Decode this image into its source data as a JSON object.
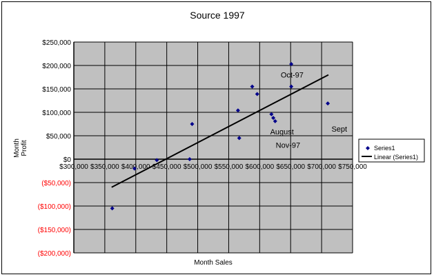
{
  "chart_data": {
    "type": "scatter",
    "title": "Source 1997",
    "xlabel": "Month Sales",
    "ylabel_lines": [
      "Month",
      "Profit"
    ],
    "xlim": [
      300000,
      750000
    ],
    "ylim": [
      -200000,
      250000
    ],
    "x_ticks": [
      {
        "value": 300000,
        "label": "$300,000"
      },
      {
        "value": 350000,
        "label": "$350,000"
      },
      {
        "value": 400000,
        "label": "$400,000"
      },
      {
        "value": 450000,
        "label": "$450,000"
      },
      {
        "value": 500000,
        "label": "$500,000"
      },
      {
        "value": 550000,
        "label": "$550,000"
      },
      {
        "value": 600000,
        "label": "$600,000"
      },
      {
        "value": 650000,
        "label": "$650,000"
      },
      {
        "value": 700000,
        "label": "$700,000"
      },
      {
        "value": 750000,
        "label": "$750,000"
      }
    ],
    "y_ticks": [
      {
        "value": 250000,
        "label": "$250,000"
      },
      {
        "value": 200000,
        "label": "$200,000"
      },
      {
        "value": 150000,
        "label": "$150,000"
      },
      {
        "value": 100000,
        "label": "$100,000"
      },
      {
        "value": 50000,
        "label": "$50,000"
      },
      {
        "value": 0,
        "label": "$0"
      },
      {
        "value": -50000,
        "label": "($50,000)"
      },
      {
        "value": -100000,
        "label": "($100,000)"
      },
      {
        "value": -150000,
        "label": "($150,000)"
      },
      {
        "value": -200000,
        "label": "($200,000)"
      }
    ],
    "series": [
      {
        "name": "Series1",
        "color": "#00008b",
        "points": [
          {
            "x": 362000,
            "y": -105000
          },
          {
            "x": 398000,
            "y": -20000
          },
          {
            "x": 434000,
            "y": -2000
          },
          {
            "x": 487000,
            "y": 0
          },
          {
            "x": 491000,
            "y": 75000
          },
          {
            "x": 565000,
            "y": 104000
          },
          {
            "x": 567000,
            "y": 45000
          },
          {
            "x": 588000,
            "y": 155000
          },
          {
            "x": 596000,
            "y": 139000
          },
          {
            "x": 619000,
            "y": 96000
          },
          {
            "x": 622000,
            "y": 88000
          },
          {
            "x": 625000,
            "y": 81000
          },
          {
            "x": 651000,
            "y": 203000
          },
          {
            "x": 651000,
            "y": 155000
          },
          {
            "x": 710000,
            "y": 119000
          }
        ]
      }
    ],
    "trendline": {
      "name": "Linear (Series1)",
      "color": "#000000",
      "x1": 361000,
      "y1": -60000,
      "x2": 711000,
      "y2": 180000
    },
    "annotations": [
      {
        "text": "Oct-97",
        "x": 634000,
        "y": 174000
      },
      {
        "text": "August",
        "x": 617000,
        "y": 53000
      },
      {
        "text": "Nov-97",
        "x": 626000,
        "y": 24000
      },
      {
        "text": "Sept",
        "x": 716000,
        "y": 59000
      }
    ],
    "legend_position": "right",
    "grid": true,
    "plot_background": "#c0c0c0",
    "negative_tick_color": "#ff0000"
  }
}
